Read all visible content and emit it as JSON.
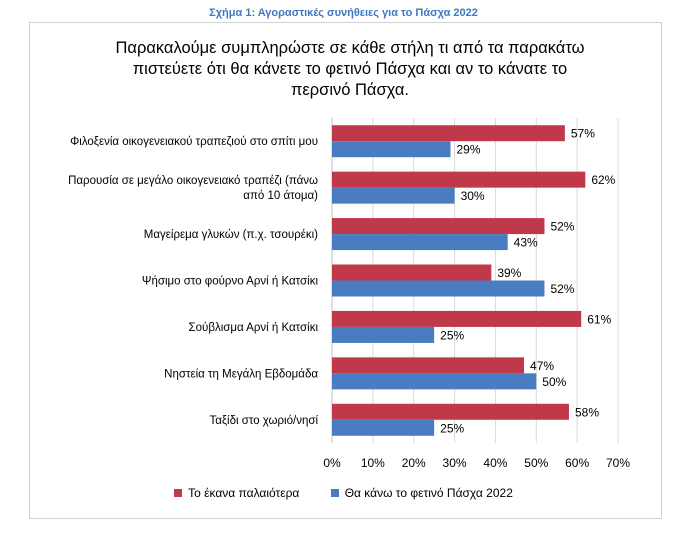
{
  "caption": "Σχήμα 1: Αγοραστικές συνήθειες για το Πάσχα 2022",
  "colors": {
    "previous": "#c0394b",
    "current": "#4a7cc2",
    "caption": "#3d78c4"
  },
  "chart_data": {
    "type": "bar",
    "orientation": "horizontal",
    "title_lines": [
      "Παρακαλούμε συμπληρώστε σε κάθε στήλη τι από τα παρακάτω",
      "πιστεύετε ότι θα κάνετε το φετινό Πάσχα και αν το κάνατε το",
      "περσινό Πάσχα."
    ],
    "categories": [
      [
        "Φιλοξενία οικογενειακού τραπεζιού στο σπίτι μου"
      ],
      [
        "Παρουσία σε μεγάλο οικογενειακό τραπέζι (πάνω",
        "από 10 άτομα)"
      ],
      [
        "Μαγείρεμα γλυκών (π.χ. τσουρέκι)"
      ],
      [
        "Ψήσιμο στο φούρνο Αρνί ή Κατσίκι"
      ],
      [
        "Σούβλισμα Αρνί ή Κατσίκι"
      ],
      [
        "Νηστεία τη Μεγάλη Εβδομάδα"
      ],
      [
        "Ταξίδι στο χωριό/νησί"
      ]
    ],
    "series": [
      {
        "name": "Το έκανα παλαιότερα",
        "color": "#c0394b",
        "values": [
          57,
          62,
          52,
          39,
          61,
          47,
          58
        ]
      },
      {
        "name": "Θα κάνω το φετινό Πάσχα 2022",
        "color": "#4a7cc2",
        "values": [
          29,
          30,
          43,
          52,
          25,
          50,
          25
        ]
      }
    ],
    "xlim": [
      0,
      70
    ],
    "xticks": [
      0,
      10,
      20,
      30,
      40,
      50,
      60,
      70
    ],
    "tick_suffix": "%",
    "legend_position": "bottom"
  }
}
